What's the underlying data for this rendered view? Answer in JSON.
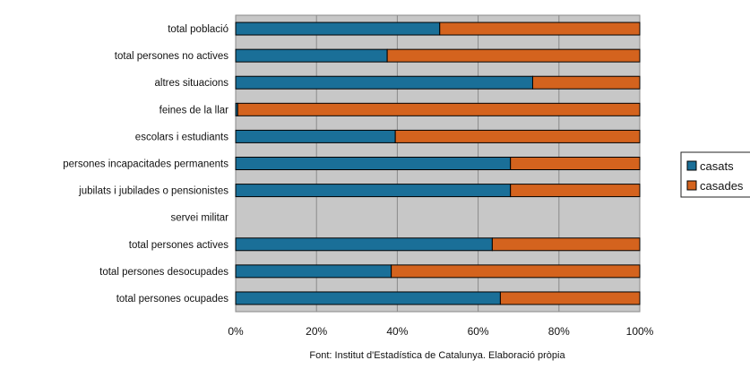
{
  "chart_data": {
    "type": "bar",
    "orientation": "horizontal",
    "stacked": "percent",
    "categories": [
      "total població",
      "total persones no actives",
      "altres situacions",
      "feines de la llar",
      "escolars i estudiants",
      "persones incapacitades permanents",
      "jubilats i jubilades o pensionistes",
      "servei militar",
      "total persones actives",
      "total persones desocupades",
      "total persones ocupades"
    ],
    "series": [
      {
        "name": "casats",
        "color": "#1a6f98",
        "values": [
          50.5,
          37.5,
          73.5,
          0.5,
          39.5,
          68.0,
          68.0,
          0,
          63.5,
          38.5,
          65.5
        ]
      },
      {
        "name": "casades",
        "color": "#d4631e",
        "values": [
          49.5,
          62.5,
          26.5,
          99.5,
          60.5,
          32.0,
          32.0,
          0,
          36.5,
          61.5,
          34.5
        ]
      }
    ],
    "xlim": [
      0,
      100
    ],
    "xticks": [
      "0%",
      "20%",
      "40%",
      "60%",
      "80%",
      "100%"
    ],
    "grid": true,
    "legend": "right",
    "source": "Font: Institut d'Estadística de Catalunya. Elaboració pròpia"
  }
}
